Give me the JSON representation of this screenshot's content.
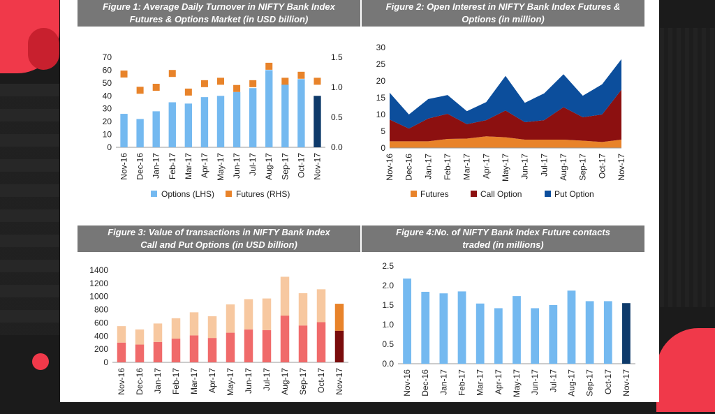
{
  "colors": {
    "title_bg": "#777777",
    "options": "#74b9f0",
    "futures": "#e8832a",
    "call_option": "#8c1010",
    "put_option": "#0c4e9c",
    "call_light": "#f06a6a",
    "put_light": "#f7c8a0",
    "highlight_dark": "#0e3a6a",
    "highlight_call": "#7a0c0c"
  },
  "chart_data": [
    {
      "id": "fig1",
      "type": "bar",
      "title": "Figure 1: Average Daily Turnover in NIFTY Bank Index",
      "subtitle": "Futures & Options Market (in USD billion)",
      "categories": [
        "Nov-16",
        "Dec-16",
        "Jan-17",
        "Feb-17",
        "Mar-17",
        "Apr-17",
        "May-17",
        "Jun-17",
        "Jul-17",
        "Aug-17",
        "Sep-17",
        "Oct-17",
        "Nov-17"
      ],
      "series": [
        {
          "name": "Options (LHS)",
          "axis": "left",
          "values": [
            26,
            22,
            28,
            35,
            34,
            39,
            40,
            43,
            46,
            60,
            49,
            53,
            40
          ]
        },
        {
          "name": "Futures (RHS)",
          "axis": "right",
          "values": [
            1.22,
            0.95,
            1.0,
            1.23,
            0.92,
            1.06,
            1.1,
            0.98,
            1.06,
            1.35,
            1.1,
            1.2,
            1.1
          ]
        }
      ],
      "ylim_left": [
        0,
        70
      ],
      "yticks_left": [
        0,
        10,
        20,
        30,
        40,
        50,
        60,
        70
      ],
      "ylim_right": [
        0,
        1.5
      ],
      "yticks_right": [
        "0.0",
        "0.5",
        "1.0",
        "1.5"
      ],
      "legend": "bottom",
      "highlight_last": true
    },
    {
      "id": "fig2",
      "type": "area",
      "title": "Figure 2: Open Interest in NIFTY Bank Index Futures &",
      "subtitle": "Options (in million)",
      "categories": [
        "Nov-16",
        "Dec-16",
        "Jan-17",
        "Feb-17",
        "Mar-17",
        "Apr-17",
        "May-17",
        "Jun-17",
        "Jul-17",
        "Aug-17",
        "Sep-17",
        "Oct-17",
        "Nov-17"
      ],
      "stacked": true,
      "series": [
        {
          "name": "Futures",
          "values": [
            2.0,
            2.0,
            2.0,
            2.7,
            2.8,
            3.5,
            3.2,
            2.5,
            2.5,
            2.5,
            2.2,
            1.8,
            2.5
          ]
        },
        {
          "name": "Call Option",
          "values": [
            6.5,
            3.8,
            6.8,
            7.5,
            4.3,
            4.8,
            8.0,
            5.2,
            5.8,
            9.7,
            7.0,
            8.2,
            14.9
          ]
        },
        {
          "name": "Put Option",
          "values": [
            8.0,
            4.2,
            5.8,
            5.6,
            3.9,
            5.4,
            10.3,
            5.8,
            8.0,
            9.8,
            6.4,
            9.0,
            9.1
          ]
        }
      ],
      "ylim": [
        0,
        30
      ],
      "yticks": [
        0,
        5,
        10,
        15,
        20,
        25,
        30
      ],
      "legend": "bottom"
    },
    {
      "id": "fig3",
      "type": "bar",
      "title": "Figure 3: Value of transactions in NIFTY Bank Index",
      "subtitle": "Call and Put Options (in USD billion)",
      "categories": [
        "Nov-16",
        "Dec-16",
        "Jan-17",
        "Feb-17",
        "Mar-17",
        "Apr-17",
        "May-17",
        "Jun-17",
        "Jul-17",
        "Aug-17",
        "Sep-17",
        "Oct-17",
        "Nov-17"
      ],
      "stacked": true,
      "series": [
        {
          "values": [
            300,
            270,
            310,
            360,
            410,
            370,
            450,
            500,
            490,
            710,
            560,
            610,
            480
          ]
        },
        {
          "values": [
            250,
            230,
            280,
            310,
            350,
            330,
            430,
            460,
            480,
            590,
            490,
            500,
            410
          ]
        }
      ],
      "ylim": [
        0,
        1400
      ],
      "yticks": [
        0,
        200,
        400,
        600,
        800,
        1000,
        1200,
        1400
      ],
      "highlight_last": true
    },
    {
      "id": "fig4",
      "type": "bar",
      "title": "Figure 4:No. of NIFTY Bank Index Future contacts",
      "subtitle": "traded (in millions)",
      "categories": [
        "Nov-16",
        "Dec-16",
        "Jan-17",
        "Feb-17",
        "Mar-17",
        "Apr-17",
        "May-17",
        "Jun-17",
        "Jul-17",
        "Aug-17",
        "Sep-17",
        "Oct-17",
        "Nov-17"
      ],
      "series": [
        {
          "values": [
            2.18,
            1.84,
            1.8,
            1.85,
            1.54,
            1.42,
            1.73,
            1.42,
            1.5,
            1.87,
            1.6,
            1.6,
            1.55
          ]
        }
      ],
      "ylim": [
        0,
        2.5
      ],
      "yticks": [
        "0.0",
        "0.5",
        "1.0",
        "1.5",
        "2.0",
        "2.5"
      ],
      "highlight_last": true
    }
  ]
}
